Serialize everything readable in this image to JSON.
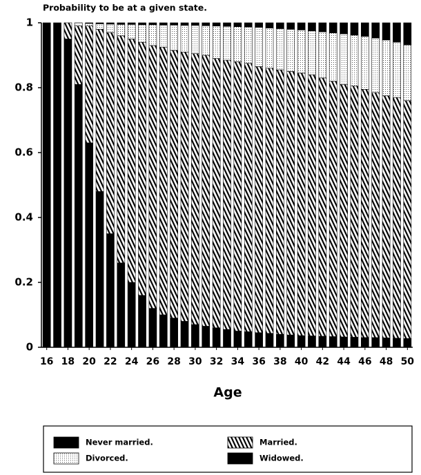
{
  "chart_data": {
    "type": "stacked_bar",
    "title": "Probability to be at a given state.",
    "x_label": "Age",
    "categories": [
      "16",
      null,
      "18",
      null,
      "20",
      null,
      "22",
      null,
      "24",
      null,
      "26",
      null,
      "28",
      null,
      "30",
      null,
      "32",
      null,
      "34",
      null,
      "36",
      null,
      "38",
      null,
      "40",
      null,
      "42",
      null,
      "44",
      null,
      "46",
      null,
      "48",
      null,
      "50"
    ],
    "ylim": [
      0,
      1
    ],
    "yticks": [
      0,
      0.2,
      0.4,
      0.6,
      0.8,
      1
    ],
    "legend_position": "bottom",
    "series": [
      {
        "name": "Never married.",
        "color": "#000000",
        "pattern": "solid",
        "values": [
          1,
          1,
          0.95,
          0.81,
          0.63,
          0.48,
          0.35,
          0.26,
          0.2,
          0.16,
          0.12,
          0.1,
          0.09,
          0.08,
          0.07,
          0.065,
          0.06,
          0.055,
          0.05,
          0.048,
          0.045,
          0.043,
          0.04,
          0.038,
          0.036,
          0.035,
          0.034,
          0.033,
          0.032,
          0.031,
          0.03,
          0.03,
          0.029,
          0.028,
          0.027
        ]
      },
      {
        "name": "Married.",
        "color": "#000000",
        "pattern": "hatch",
        "values": [
          0,
          0,
          0.05,
          0.18,
          0.36,
          0.5,
          0.62,
          0.7,
          0.75,
          0.78,
          0.81,
          0.825,
          0.825,
          0.83,
          0.835,
          0.835,
          0.83,
          0.83,
          0.83,
          0.827,
          0.82,
          0.817,
          0.815,
          0.812,
          0.809,
          0.805,
          0.796,
          0.787,
          0.778,
          0.774,
          0.765,
          0.755,
          0.746,
          0.742,
          0.733
        ]
      },
      {
        "name": "Divorced.",
        "color": "#000000",
        "pattern": "dots",
        "values": [
          0,
          0,
          0,
          0.01,
          0.008,
          0.017,
          0.026,
          0.035,
          0.045,
          0.054,
          0.064,
          0.068,
          0.078,
          0.082,
          0.087,
          0.091,
          0.1,
          0.104,
          0.108,
          0.112,
          0.121,
          0.124,
          0.127,
          0.13,
          0.133,
          0.135,
          0.142,
          0.149,
          0.156,
          0.157,
          0.163,
          0.168,
          0.172,
          0.17,
          0.172
        ]
      },
      {
        "name": "Widowed.",
        "color": "#000000",
        "pattern": "solid",
        "values": [
          0,
          0,
          0,
          0,
          0.002,
          0.003,
          0.004,
          0.005,
          0.005,
          0.006,
          0.006,
          0.007,
          0.007,
          0.008,
          0.008,
          0.009,
          0.01,
          0.011,
          0.012,
          0.013,
          0.014,
          0.016,
          0.018,
          0.02,
          0.022,
          0.025,
          0.028,
          0.031,
          0.034,
          0.038,
          0.042,
          0.047,
          0.053,
          0.06,
          0.068
        ]
      }
    ]
  }
}
